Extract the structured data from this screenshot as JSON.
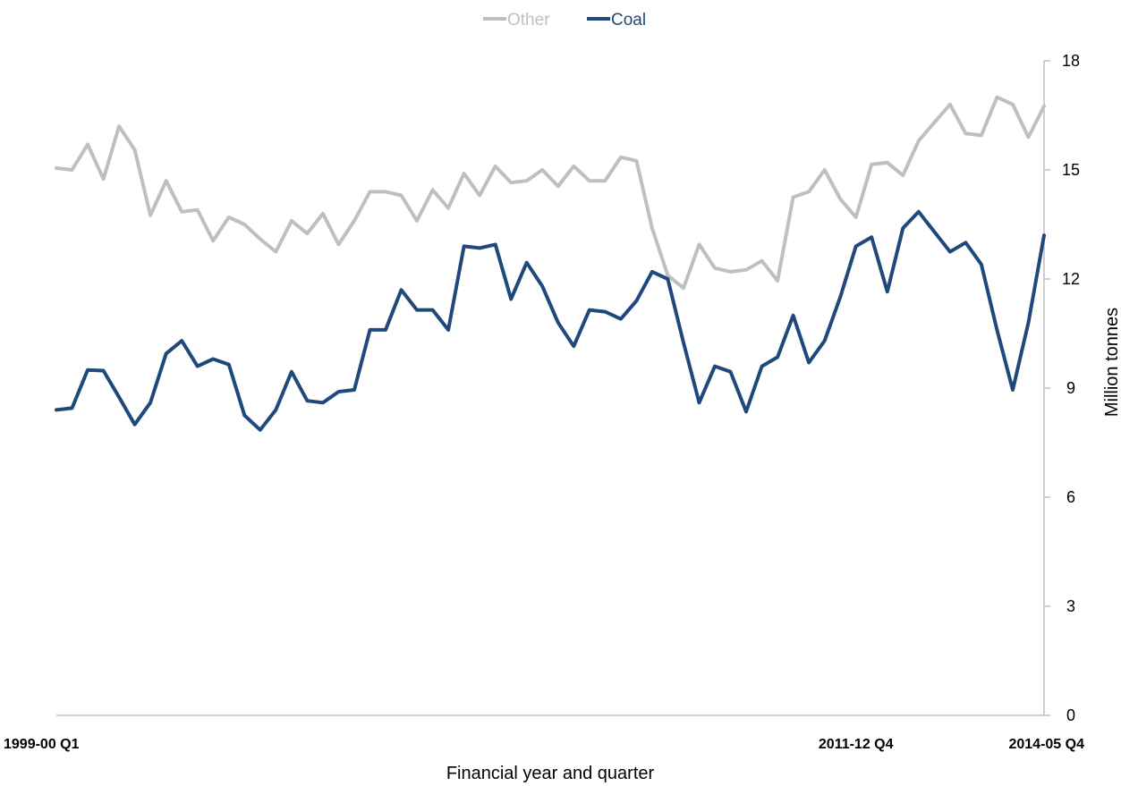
{
  "chart_data": {
    "type": "line",
    "title": "",
    "xlabel": "Financial year and quarter",
    "ylabel": "Million tonnes",
    "ylim": [
      0,
      18
    ],
    "yticks": [
      0,
      3,
      6,
      9,
      12,
      15,
      18
    ],
    "y_axis_side": "right",
    "legend_position": "top-center",
    "grid": false,
    "x_labels": [
      {
        "index": 0,
        "label": "1999-00 Q1"
      },
      {
        "index": 51,
        "label": "2011-12 Q4"
      },
      {
        "index": 63,
        "label": "2014-05 Q4"
      }
    ],
    "series": [
      {
        "name": "Other",
        "color": "#bfbfbf",
        "values": [
          15.05,
          15.0,
          15.7,
          14.75,
          16.2,
          15.55,
          13.75,
          14.7,
          13.85,
          13.9,
          13.05,
          13.7,
          13.5,
          13.1,
          12.75,
          13.6,
          13.25,
          13.8,
          12.95,
          13.6,
          14.4,
          14.4,
          14.3,
          13.6,
          14.45,
          13.95,
          14.9,
          14.3,
          15.1,
          14.65,
          14.7,
          15.0,
          14.55,
          15.1,
          14.7,
          14.7,
          15.35,
          15.25,
          13.4,
          12.1,
          11.75,
          12.95,
          12.3,
          12.2,
          12.25,
          12.5,
          11.95,
          14.25,
          14.4,
          15.0,
          14.2,
          13.7,
          15.15,
          15.2,
          14.85,
          15.8,
          16.3,
          16.8,
          16.0,
          15.95,
          17.0,
          16.8,
          15.9,
          16.75
        ]
      },
      {
        "name": "Coal",
        "color": "#1f497d",
        "values": [
          8.4,
          8.45,
          9.5,
          9.48,
          8.75,
          8.0,
          8.6,
          9.95,
          10.3,
          9.6,
          9.8,
          9.65,
          8.25,
          7.85,
          8.4,
          9.45,
          8.65,
          8.6,
          8.9,
          8.95,
          10.6,
          10.6,
          11.7,
          11.15,
          11.15,
          10.6,
          12.9,
          12.85,
          12.95,
          11.45,
          12.45,
          11.8,
          10.8,
          10.15,
          11.15,
          11.1,
          10.9,
          11.4,
          12.2,
          12.0,
          10.25,
          8.6,
          9.6,
          9.45,
          8.35,
          9.6,
          9.85,
          11.0,
          9.7,
          10.3,
          11.5,
          12.9,
          13.15,
          11.65,
          13.4,
          13.85,
          13.3,
          12.75,
          13.0,
          12.4,
          10.6,
          8.95,
          10.8,
          13.2
        ]
      }
    ]
  }
}
